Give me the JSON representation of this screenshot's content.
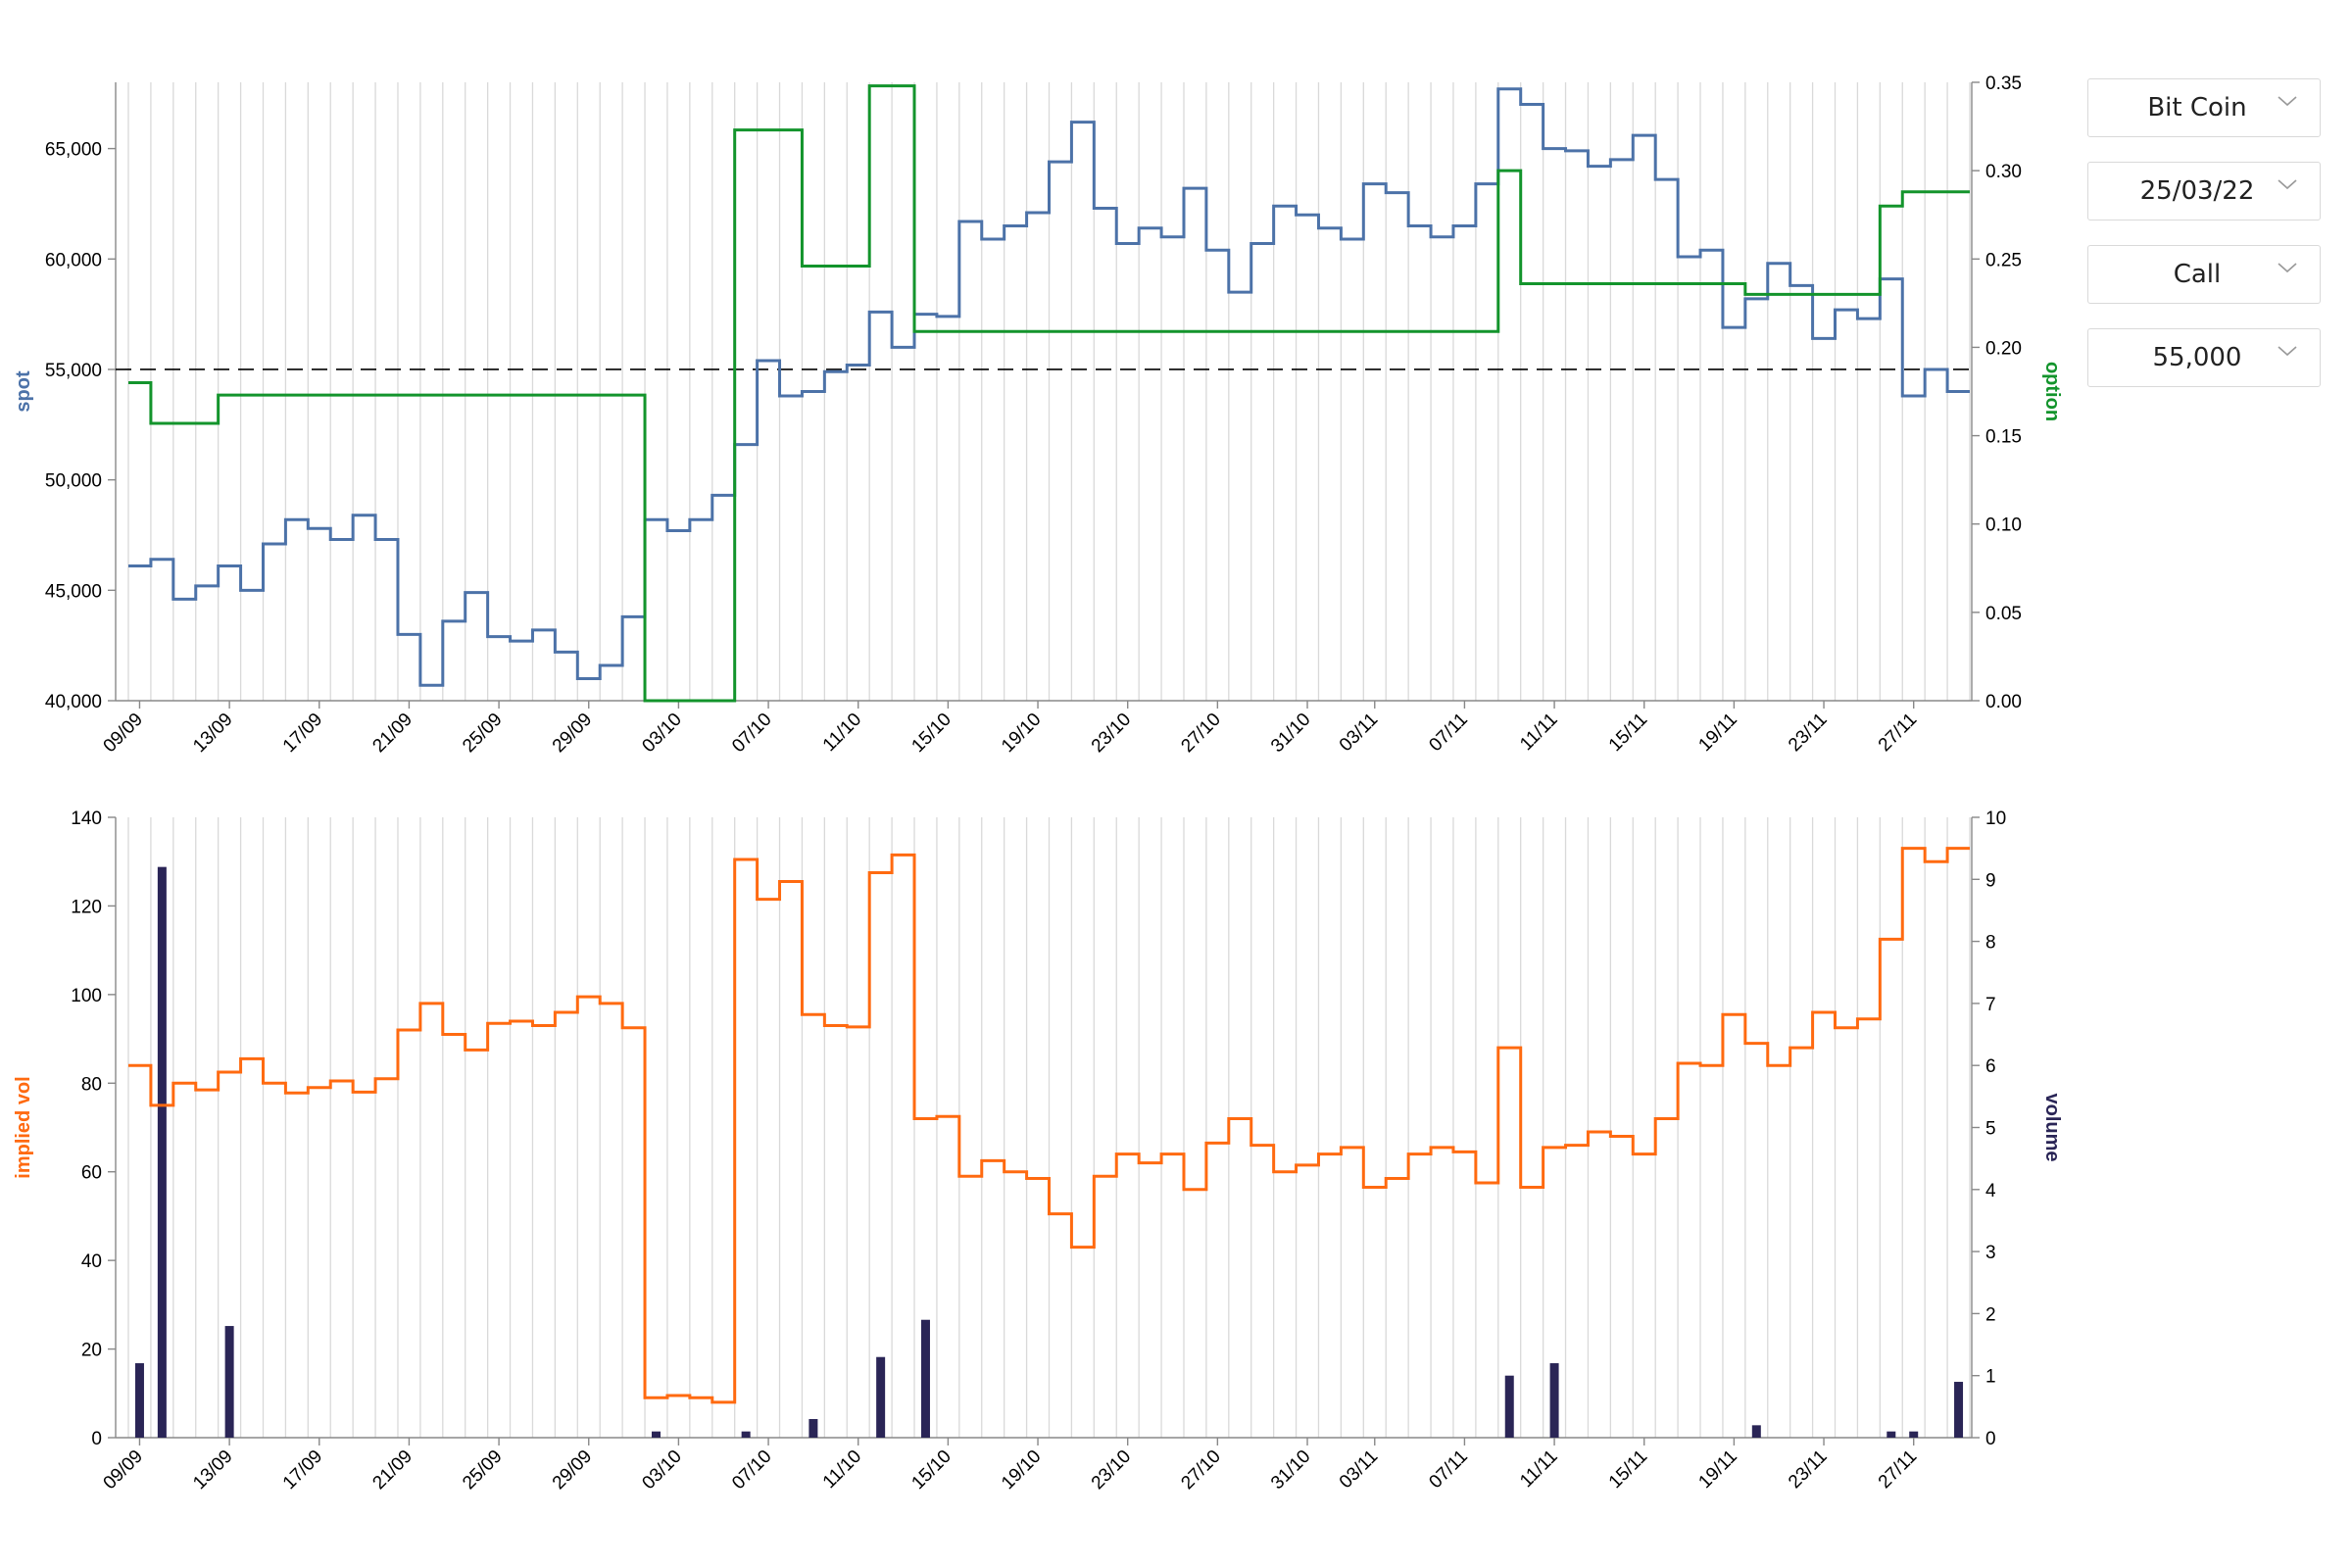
{
  "controls": {
    "asset": "Bit Coin",
    "expiry": "25/03/22",
    "option_type": "Call",
    "strike": "55,000"
  },
  "colors": {
    "spot": "#4c72a8",
    "option": "#13942c",
    "implied_vol": "#ff6a10",
    "volume": "#2a2556",
    "grid": "#d9d9d9",
    "strike_line": "#000000"
  },
  "chart_data": [
    {
      "type": "line",
      "step": true,
      "grid": true,
      "x_tick_labels": [
        "09/09",
        "13/09",
        "17/09",
        "21/09",
        "25/09",
        "29/09",
        "03/10",
        "07/10",
        "11/10",
        "15/10",
        "19/10",
        "23/10",
        "27/10",
        "31/10",
        "03/11",
        "07/11",
        "11/11",
        "15/11",
        "19/11",
        "23/11",
        "27/11"
      ],
      "ylabel_left": "spot",
      "ylabel_right": "option",
      "ylim_left": [
        40000,
        68000
      ],
      "ylim_right": [
        0,
        0.35
      ],
      "yticks_left": [
        "40,000",
        "45,000",
        "50,000",
        "55,000",
        "60,000",
        "65,000"
      ],
      "yticks_right": [
        "0.00",
        "0.05",
        "0.10",
        "0.15",
        "0.20",
        "0.25",
        "0.30",
        "0.35"
      ],
      "reference_line": {
        "axis": "left",
        "y": 55000,
        "style": "dashed"
      },
      "series": [
        {
          "name": "spot",
          "axis": "left",
          "values": [
            46100,
            46400,
            44600,
            45200,
            46100,
            45000,
            47100,
            48200,
            47800,
            47300,
            48400,
            47300,
            43000,
            40700,
            43600,
            44900,
            42900,
            42700,
            43200,
            42200,
            41000,
            41600,
            43800,
            48200,
            47700,
            48200,
            49300,
            51600,
            55400,
            53800,
            54000,
            54900,
            55200,
            57600,
            56000,
            57500,
            57400,
            61700,
            60900,
            61500,
            62100,
            64400,
            66200,
            62300,
            60700,
            61400,
            61000,
            63200,
            60400,
            58500,
            60700,
            62400,
            62000,
            61400,
            60900,
            63400,
            63000,
            61500,
            61000,
            61500,
            63400,
            67700,
            67000,
            65000,
            64900,
            64200,
            64500,
            65600,
            63600,
            60100,
            60400,
            56900,
            58200,
            59800,
            58800,
            56400,
            57700,
            57300,
            59100,
            53800,
            55000,
            54000
          ]
        },
        {
          "name": "option",
          "axis": "right",
          "values": [
            0.18,
            0.157,
            0.157,
            0.157,
            0.173,
            0.173,
            0.173,
            0.173,
            0.173,
            0.173,
            0.173,
            0.173,
            0.173,
            0.173,
            0.173,
            0.173,
            0.173,
            0.173,
            0.173,
            0.173,
            0.173,
            0.173,
            0.173,
            0.0,
            0.0,
            0.0,
            0.0,
            0.323,
            0.323,
            0.323,
            0.246,
            0.246,
            0.246,
            0.348,
            0.348,
            0.209,
            0.209,
            0.209,
            0.209,
            0.209,
            0.209,
            0.209,
            0.209,
            0.209,
            0.209,
            0.209,
            0.209,
            0.209,
            0.209,
            0.209,
            0.209,
            0.209,
            0.209,
            0.209,
            0.209,
            0.209,
            0.209,
            0.209,
            0.209,
            0.209,
            0.209,
            0.3,
            0.236,
            0.236,
            0.236,
            0.236,
            0.236,
            0.236,
            0.236,
            0.236,
            0.236,
            0.236,
            0.23,
            0.23,
            0.23,
            0.23,
            0.23,
            0.23,
            0.28,
            0.288,
            0.288,
            0.288
          ]
        }
      ]
    },
    {
      "type": "line",
      "step": true,
      "grid": true,
      "x_tick_labels": [
        "09/09",
        "13/09",
        "17/09",
        "21/09",
        "25/09",
        "29/09",
        "03/10",
        "07/10",
        "11/10",
        "15/10",
        "19/10",
        "23/10",
        "27/10",
        "31/10",
        "03/11",
        "07/11",
        "11/11",
        "15/11",
        "19/11",
        "23/11",
        "27/11"
      ],
      "ylabel_left": "implied vol",
      "ylabel_right": "volume",
      "ylim_left": [
        0,
        140
      ],
      "ylim_right": [
        0,
        10
      ],
      "yticks_left": [
        "0",
        "20",
        "40",
        "60",
        "80",
        "100",
        "120",
        "140"
      ],
      "yticks_right": [
        "0",
        "1",
        "2",
        "3",
        "4",
        "5",
        "6",
        "7",
        "8",
        "9",
        "10"
      ],
      "series": [
        {
          "name": "implied vol",
          "axis": "left",
          "type": "line",
          "values": [
            84,
            75,
            80,
            78.5,
            82.5,
            85.5,
            80,
            77.8,
            79,
            80.5,
            78,
            81,
            92,
            98,
            91,
            87.5,
            93.5,
            94,
            93,
            96,
            99.5,
            98,
            92.5,
            9,
            9.5,
            9,
            8,
            130.5,
            121.5,
            125.5,
            95.5,
            93,
            92.7,
            127.5,
            131.5,
            72,
            72.5,
            59,
            62.5,
            60,
            58.5,
            50.5,
            43,
            59,
            64,
            62,
            64,
            56,
            66.5,
            72,
            66,
            60,
            61.5,
            64,
            65.5,
            56.5,
            58.5,
            64,
            65.5,
            64.5,
            57.5,
            88,
            56.5,
            65.5,
            66,
            69,
            68,
            64,
            72,
            84.5,
            84,
            95.5,
            89,
            84,
            88,
            96,
            92.5,
            94.5,
            112.5,
            133,
            130,
            133
          ]
        },
        {
          "name": "volume",
          "axis": "right",
          "type": "bar",
          "values": [
            1.2,
            9.2,
            0,
            0,
            1.8,
            0,
            0,
            0,
            0,
            0,
            0,
            0,
            0,
            0,
            0,
            0,
            0,
            0,
            0,
            0,
            0,
            0,
            0,
            0.1,
            0,
            0,
            0,
            0.1,
            0,
            0,
            0.3,
            0,
            0,
            1.3,
            0,
            1.9,
            0,
            0,
            0,
            0,
            0,
            0,
            0,
            0,
            0,
            0,
            0,
            0,
            0,
            0,
            0,
            0,
            0,
            0,
            0,
            0,
            0,
            0,
            0,
            0,
            0,
            1.0,
            0,
            1.2,
            0,
            0,
            0,
            0,
            0,
            0,
            0,
            0,
            0.2,
            0,
            0,
            0,
            0,
            0,
            0.1,
            0.1,
            0,
            0.9
          ]
        }
      ]
    }
  ]
}
